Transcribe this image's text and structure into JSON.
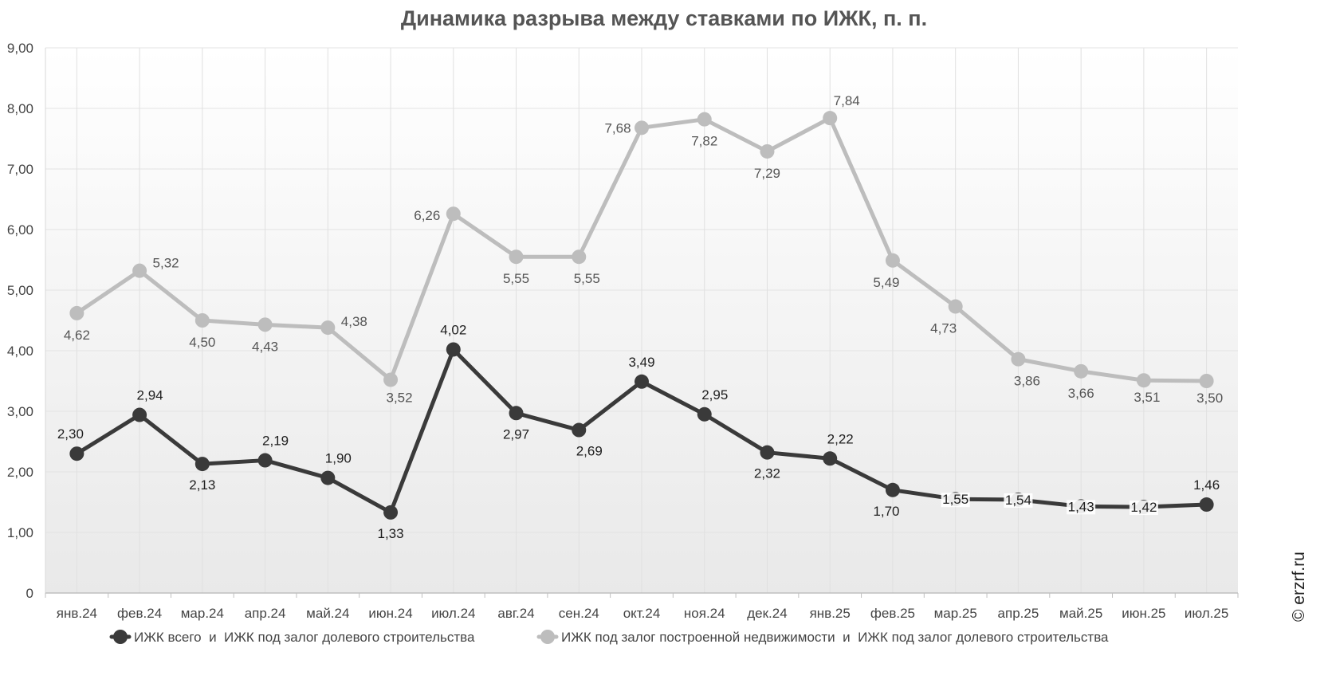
{
  "chart_data": {
    "type": "line",
    "title": "Динамика разрыва между ставками по ИЖК, п. п.",
    "categories": [
      "янв.24",
      "фев.24",
      "мар.24",
      "апр.24",
      "май.24",
      "июн.24",
      "июл.24",
      "авг.24",
      "сен.24",
      "окт.24",
      "ноя.24",
      "дек.24",
      "янв.25",
      "фев.25",
      "мар.25",
      "апр.25",
      "май.25",
      "июн.25",
      "июл.25"
    ],
    "series": [
      {
        "name": "ИЖК всего  и  ИЖК под залог долевого строительства",
        "color": "#3a3a3a",
        "values": [
          2.3,
          2.94,
          2.13,
          2.19,
          1.9,
          1.33,
          4.02,
          2.97,
          2.69,
          3.49,
          2.95,
          2.32,
          2.22,
          1.7,
          1.55,
          1.54,
          1.43,
          1.42,
          1.46
        ],
        "labels": [
          "2,30",
          "2,94",
          "2,13",
          "2,19",
          "1,90",
          "1,33",
          "4,02",
          "2,97",
          "2,69",
          "3,49",
          "2,95",
          "2,32",
          "2,22",
          "1,70",
          "1,55",
          "1,54",
          "1,43",
          "1,42",
          "1,46"
        ]
      },
      {
        "name": "ИЖК под залог построенной недвижимости  и  ИЖК под залог долевого строительства",
        "color": "#bdbdbd",
        "values": [
          4.62,
          5.32,
          4.5,
          4.43,
          4.38,
          3.52,
          6.26,
          5.55,
          5.55,
          7.68,
          7.82,
          7.29,
          7.84,
          5.49,
          4.73,
          3.86,
          3.66,
          3.51,
          3.5
        ],
        "labels": [
          "4,62",
          "5,32",
          "4,50",
          "4,43",
          "4,38",
          "3,52",
          "6,26",
          "5,55",
          "5,55",
          "7,68",
          "7,82",
          "7,29",
          "7,84",
          "5,49",
          "4,73",
          "3,86",
          "3,66",
          "3,51",
          "3,50"
        ]
      }
    ],
    "ylim": [
      0,
      9
    ],
    "yticks": [
      "0",
      "1,00",
      "2,00",
      "3,00",
      "4,00",
      "5,00",
      "6,00",
      "7,00",
      "8,00",
      "9,00"
    ],
    "grid": true,
    "legend": "bottom",
    "watermark": "© erzrf.ru"
  }
}
